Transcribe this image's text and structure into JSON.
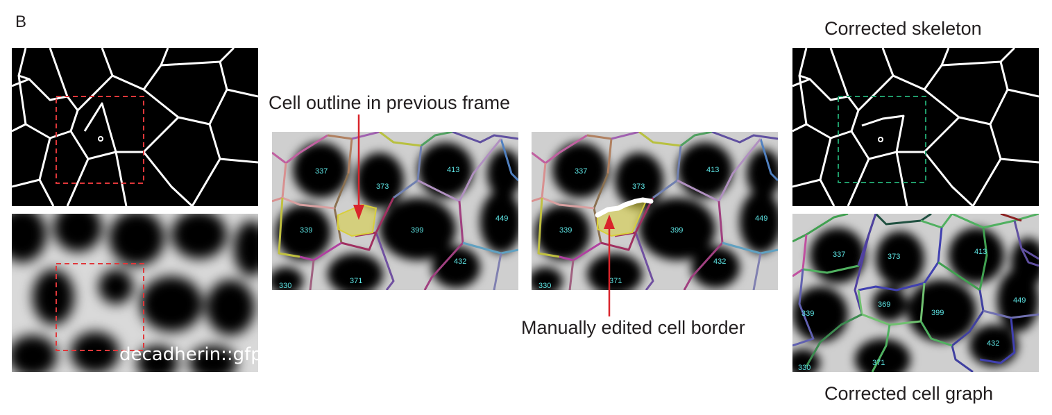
{
  "panel_label": "B",
  "titles": {
    "corrected_skeleton": "Corrected skeleton",
    "corrected_cell_graph": "Corrected cell graph"
  },
  "annotations": {
    "previous_outline": "Cell outline in previous frame",
    "manual_border": "Manually edited cell border"
  },
  "stain_label": "decadherin::gfp",
  "cell_ids": {
    "c337": "337",
    "c373": "373",
    "c413": "413",
    "c339": "339",
    "c399": "399",
    "c449": "449",
    "c432": "432",
    "c371": "371",
    "c330": "330",
    "c369": "369"
  },
  "colors": {
    "red_box": "#e0373a",
    "green_box": "#1f9c6a",
    "arrow": "#d9242b",
    "highlight": "#d8cf3a",
    "cell_id": "#5ee6e6"
  }
}
